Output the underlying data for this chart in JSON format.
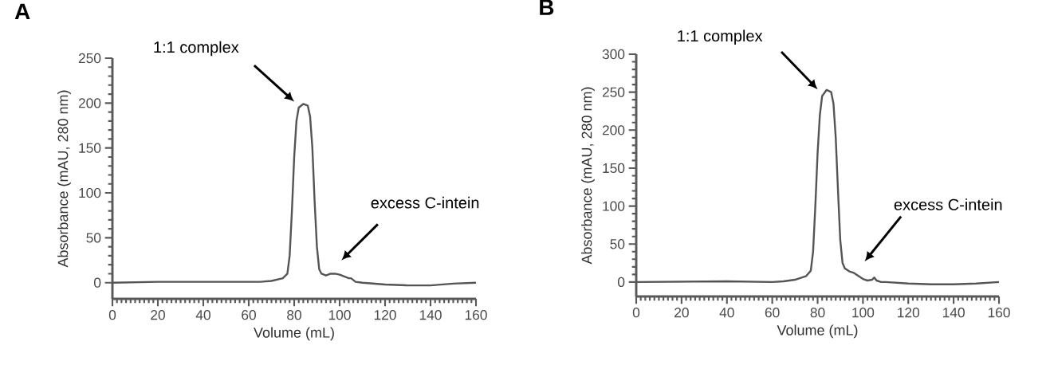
{
  "chart_data": [
    {
      "type": "line",
      "title": "A",
      "xlabel": "Volume (mL)",
      "ylabel": "Absorbance (mAU, 280 nm)",
      "xlim": [
        0,
        160
      ],
      "ylim": [
        -18,
        250
      ],
      "xticks": [
        0,
        20,
        40,
        60,
        80,
        100,
        120,
        140,
        160
      ],
      "yticks": [
        0,
        50,
        100,
        150,
        200,
        250
      ],
      "marker": "none",
      "line_style": "solid",
      "x": [
        0,
        20,
        40,
        60,
        65,
        70,
        75,
        77,
        78,
        79,
        80,
        81,
        82,
        84,
        86,
        87,
        88,
        89,
        90,
        91,
        92,
        94,
        96,
        98,
        100,
        102,
        104,
        105,
        106,
        107,
        110,
        120,
        130,
        140,
        150,
        160
      ],
      "series": [
        {
          "color": "#555555",
          "values": [
            0,
            1,
            1,
            1,
            1,
            2,
            5,
            10,
            30,
            80,
            140,
            180,
            195,
            199,
            197,
            185,
            150,
            90,
            40,
            15,
            10,
            8,
            10,
            10,
            9,
            7,
            5,
            5,
            3,
            1,
            0,
            -2,
            -3,
            -3,
            -1,
            0
          ]
        }
      ],
      "annotations": [
        "1:1 complex",
        "excess C-intein"
      ]
    },
    {
      "type": "line",
      "title": "B",
      "xlabel": "Volume (mL)",
      "ylabel": "Absorbance (mAU, 280 nm)",
      "xlim": [
        0,
        160
      ],
      "ylim": [
        -19,
        300
      ],
      "xticks": [
        0,
        20,
        40,
        60,
        80,
        100,
        120,
        140,
        160
      ],
      "yticks": [
        0,
        50,
        100,
        150,
        200,
        250,
        300
      ],
      "marker": "none",
      "line_style": "solid",
      "x": [
        0,
        40,
        60,
        65,
        70,
        75,
        77,
        78,
        79,
        80,
        81,
        82,
        84,
        86,
        87,
        88,
        89,
        90,
        91,
        92,
        94,
        96,
        98,
        100,
        102,
        104,
        105,
        106,
        108,
        110,
        120,
        130,
        140,
        150,
        160
      ],
      "series": [
        {
          "color": "#555555",
          "values": [
            0,
            1,
            0,
            1,
            3,
            8,
            15,
            40,
            100,
            170,
            220,
            245,
            253,
            250,
            235,
            190,
            120,
            55,
            25,
            18,
            14,
            12,
            8,
            4,
            2,
            3,
            6,
            2,
            0,
            0,
            -2,
            -3,
            -3,
            -2,
            0
          ]
        }
      ],
      "annotations": [
        "1:1 complex",
        "excess C-intein"
      ]
    }
  ]
}
